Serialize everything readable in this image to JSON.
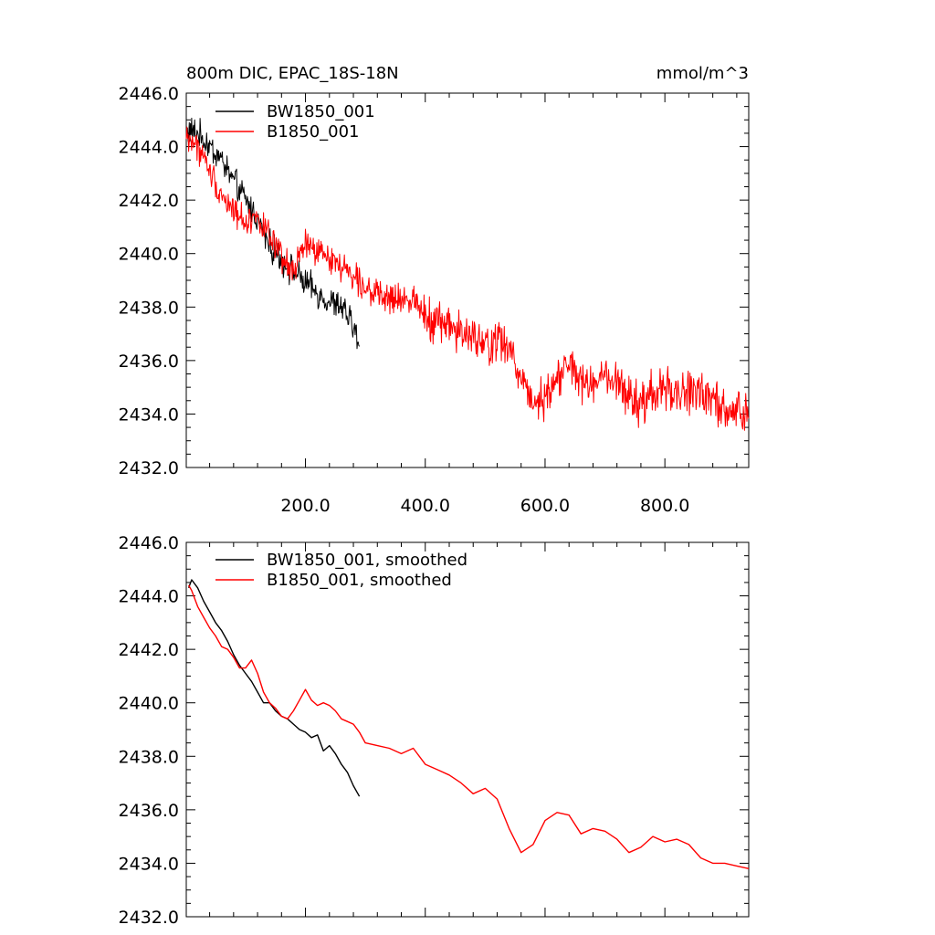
{
  "page": {
    "background": "#ffffff",
    "units_label": "mmol/m^3"
  },
  "chart_data": [
    {
      "type": "line",
      "title": "800m DIC, EPAC_18S-18N",
      "units": "mmol/m^3",
      "xlabel": "",
      "ylabel": "",
      "xlim": [
        1,
        940
      ],
      "ylim": [
        2432,
        2446
      ],
      "xticks": [
        200,
        400,
        600,
        800
      ],
      "xtick_labels": [
        "200.0",
        "400.0",
        "600.0",
        "800.0"
      ],
      "yticks": [
        2432,
        2434,
        2436,
        2438,
        2440,
        2442,
        2444,
        2446
      ],
      "ytick_labels": [
        "2432.0",
        "2434.0",
        "2436.0",
        "2438.0",
        "2440.0",
        "2442.0",
        "2444.0",
        "2446.0"
      ],
      "grid": false,
      "legend_position": "top-left",
      "series": [
        {
          "name": "BW1850_001",
          "color": "#000000",
          "noisy": true,
          "x": [
            1,
            20,
            40,
            60,
            80,
            100,
            120,
            140,
            160,
            180,
            200,
            220,
            240,
            260,
            280,
            290
          ],
          "y": [
            2444.6,
            2444.5,
            2444.0,
            2443.5,
            2442.7,
            2442.0,
            2441.3,
            2440.3,
            2439.8,
            2439.3,
            2438.9,
            2438.5,
            2438.2,
            2438.0,
            2437.3,
            2436.5
          ]
        },
        {
          "name": "B1850_001",
          "color": "#ff0000",
          "noisy": true,
          "x": [
            1,
            20,
            40,
            60,
            80,
            100,
            120,
            140,
            160,
            180,
            200,
            220,
            240,
            260,
            280,
            300,
            320,
            340,
            360,
            380,
            400,
            420,
            440,
            460,
            480,
            500,
            520,
            540,
            560,
            580,
            600,
            620,
            640,
            660,
            680,
            700,
            720,
            740,
            760,
            780,
            800,
            820,
            840,
            860,
            880,
            900,
            920,
            940
          ],
          "y": [
            2444.4,
            2444.0,
            2443.1,
            2442.2,
            2441.6,
            2441.2,
            2441.4,
            2440.6,
            2439.8,
            2439.3,
            2440.4,
            2440.0,
            2439.9,
            2439.5,
            2439.2,
            2438.8,
            2438.4,
            2438.3,
            2438.2,
            2438.4,
            2437.8,
            2437.4,
            2437.4,
            2437.0,
            2436.8,
            2436.5,
            2436.8,
            2436.4,
            2435.4,
            2434.5,
            2434.6,
            2435.4,
            2435.8,
            2435.2,
            2435.0,
            2435.4,
            2435.0,
            2434.7,
            2434.2,
            2434.8,
            2435.0,
            2434.8,
            2434.7,
            2435.0,
            2434.4,
            2434.1,
            2434.1,
            2433.9
          ]
        }
      ]
    },
    {
      "type": "line",
      "title": "",
      "xlabel": "",
      "ylabel": "",
      "xlim": [
        1,
        940
      ],
      "ylim": [
        2432,
        2446
      ],
      "xticks": [
        200,
        400,
        600,
        800
      ],
      "xtick_labels": [],
      "yticks": [
        2432,
        2434,
        2436,
        2438,
        2440,
        2442,
        2444,
        2446
      ],
      "ytick_labels": [
        "2432.0",
        "2434.0",
        "2436.0",
        "2438.0",
        "2440.0",
        "2442.0",
        "2444.0",
        "2446.0"
      ],
      "grid": false,
      "legend_position": "top-left",
      "series": [
        {
          "name": "BW1850_001, smoothed",
          "color": "#000000",
          "noisy": false,
          "x": [
            5,
            10,
            20,
            30,
            40,
            50,
            60,
            70,
            80,
            90,
            100,
            110,
            120,
            130,
            140,
            150,
            160,
            170,
            180,
            190,
            200,
            210,
            220,
            230,
            240,
            250,
            260,
            270,
            280,
            290
          ],
          "y": [
            2444.3,
            2444.6,
            2444.3,
            2443.8,
            2443.4,
            2443.0,
            2442.7,
            2442.3,
            2441.8,
            2441.4,
            2441.1,
            2440.8,
            2440.4,
            2440.0,
            2440.0,
            2439.7,
            2439.5,
            2439.4,
            2439.2,
            2439.0,
            2438.9,
            2438.7,
            2438.8,
            2438.2,
            2438.4,
            2438.1,
            2437.7,
            2437.4,
            2436.9,
            2436.5
          ]
        },
        {
          "name": "B1850_001, smoothed",
          "color": "#ff0000",
          "noisy": false,
          "x": [
            5,
            10,
            20,
            30,
            40,
            50,
            60,
            70,
            80,
            90,
            100,
            110,
            120,
            130,
            140,
            150,
            160,
            170,
            180,
            190,
            200,
            210,
            220,
            230,
            240,
            250,
            260,
            270,
            280,
            290,
            300,
            320,
            340,
            360,
            380,
            400,
            420,
            440,
            460,
            480,
            500,
            520,
            540,
            560,
            580,
            600,
            620,
            640,
            660,
            680,
            700,
            720,
            740,
            760,
            780,
            800,
            820,
            840,
            860,
            880,
            900,
            920,
            940
          ],
          "y": [
            2444.4,
            2444.2,
            2443.6,
            2443.2,
            2442.8,
            2442.5,
            2442.1,
            2442.0,
            2441.7,
            2441.3,
            2441.3,
            2441.6,
            2441.1,
            2440.4,
            2440.0,
            2439.8,
            2439.5,
            2439.4,
            2439.7,
            2440.1,
            2440.5,
            2440.1,
            2439.9,
            2440.0,
            2439.9,
            2439.7,
            2439.4,
            2439.3,
            2439.2,
            2438.9,
            2438.5,
            2438.4,
            2438.3,
            2438.1,
            2438.3,
            2437.7,
            2437.5,
            2437.3,
            2437.0,
            2436.6,
            2436.8,
            2436.4,
            2435.3,
            2434.4,
            2434.7,
            2435.6,
            2435.9,
            2435.8,
            2435.1,
            2435.3,
            2435.2,
            2434.9,
            2434.4,
            2434.6,
            2435.0,
            2434.8,
            2434.9,
            2434.7,
            2434.2,
            2434.0,
            2434.0,
            2433.9,
            2433.8
          ]
        }
      ]
    }
  ]
}
